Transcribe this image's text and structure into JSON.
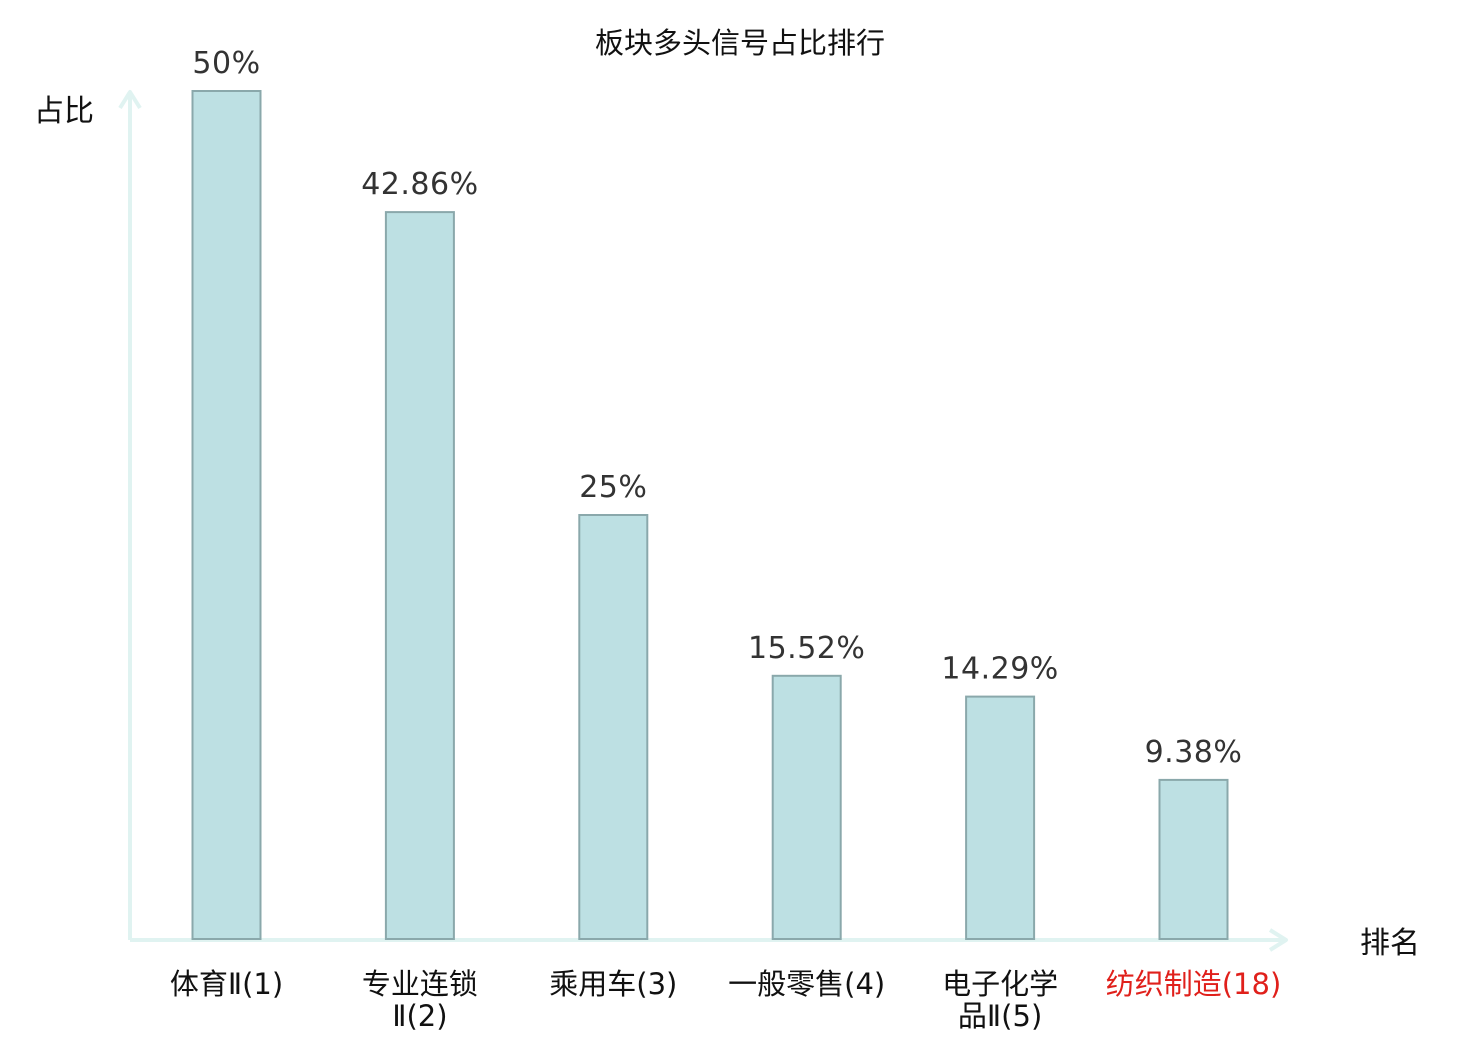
{
  "chart_data": {
    "type": "bar",
    "title": "板块多头信号占比排行",
    "ylabel": "占比",
    "xlabel": "排名",
    "ylim": [
      0,
      50
    ],
    "grid": false,
    "categories": [
      {
        "lines": [
          "体育Ⅱ(1)"
        ],
        "highlight": false
      },
      {
        "lines": [
          "专业连锁",
          "Ⅱ(2)"
        ],
        "highlight": false
      },
      {
        "lines": [
          "乘用车(3)"
        ],
        "highlight": false
      },
      {
        "lines": [
          "一般零售(4)"
        ],
        "highlight": false
      },
      {
        "lines": [
          "电子化学",
          "品Ⅱ(5)"
        ],
        "highlight": false
      },
      {
        "lines": [
          "纺织制造(18)"
        ],
        "highlight": true
      }
    ],
    "values": [
      50,
      42.86,
      25,
      15.52,
      14.29,
      9.38
    ],
    "value_labels": [
      "50%",
      "42.86%",
      "25%",
      "15.52%",
      "14.29%",
      "9.38%"
    ],
    "colors": {
      "bar_fill": "#bde0e3",
      "bar_stroke": "#8aa8ab",
      "axis": "#e0f3f1",
      "highlight_text": "#e0201b",
      "normal_text": "#111111"
    }
  }
}
